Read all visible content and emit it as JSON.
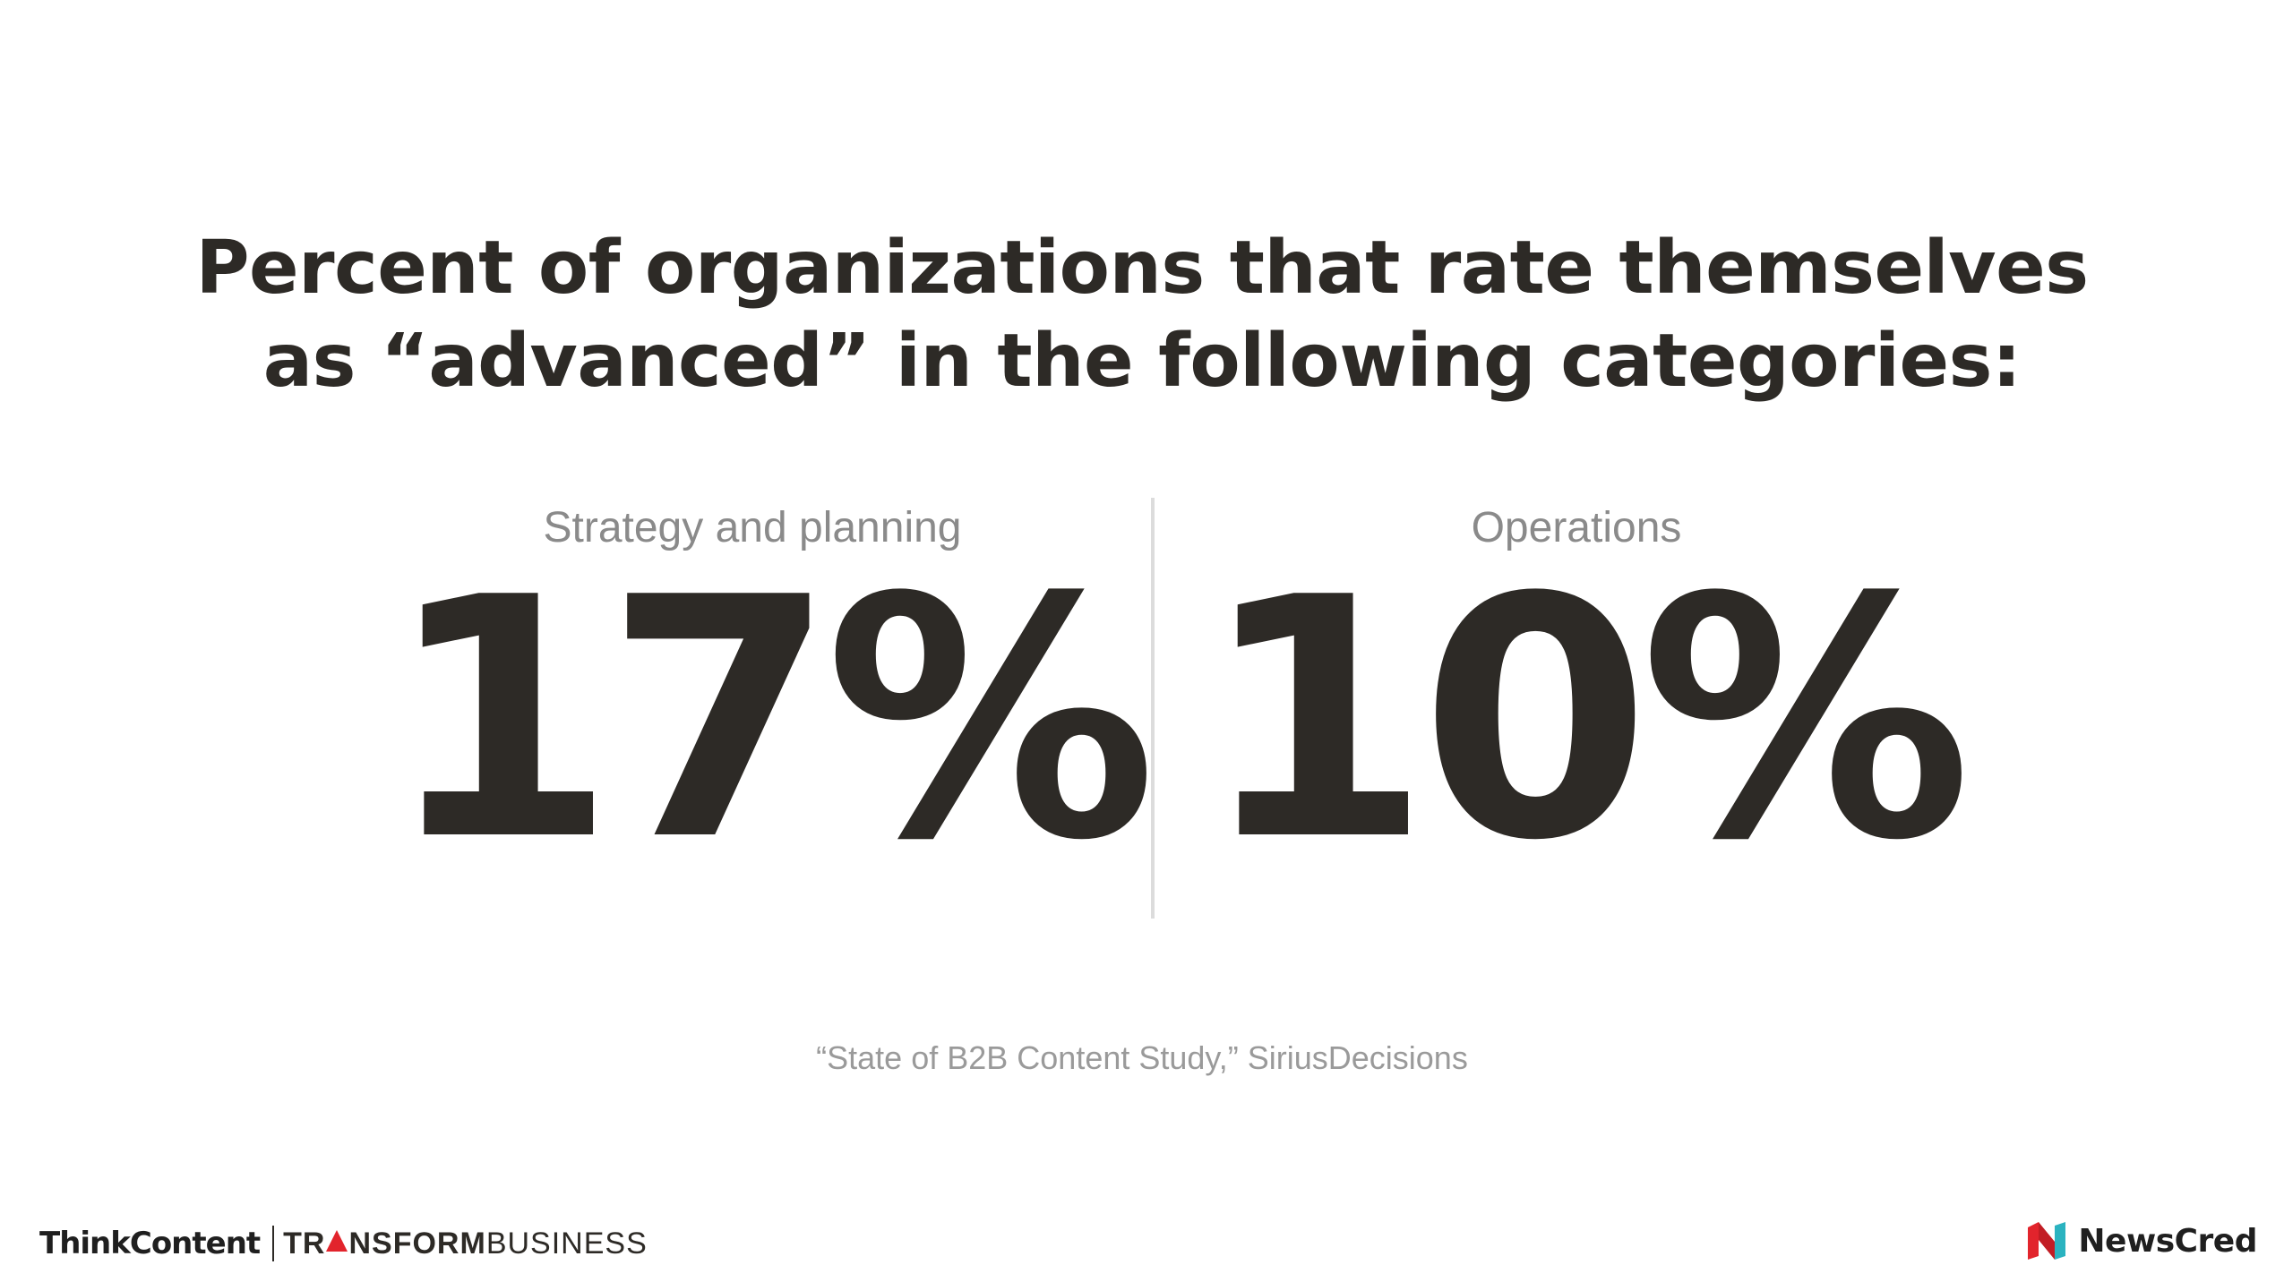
{
  "title": {
    "line1": "Percent of organizations that rate themselves",
    "line2": "as “advanced” in the following categories:"
  },
  "stats": [
    {
      "label": "Strategy and planning",
      "value": "17%"
    },
    {
      "label": "Operations",
      "value": "10%"
    }
  ],
  "source": "“State of B2B Content Study,” SiriusDecisions",
  "footer": {
    "think_content": "ThinkContent",
    "transform_a": "TR",
    "transform_b": "NSFORM",
    "business": "BUSINESS",
    "newscred": "NewsCred"
  },
  "colors": {
    "text_dark": "#2d2a26",
    "text_gray": "#8a8a8a",
    "divider": "#dcdcdc",
    "accent_red": "#e2242c",
    "accent_teal": "#2bb3c0"
  },
  "icons": {
    "transform_a": "red-triangle-icon",
    "newscred_logo": "newscred-logo-icon"
  }
}
